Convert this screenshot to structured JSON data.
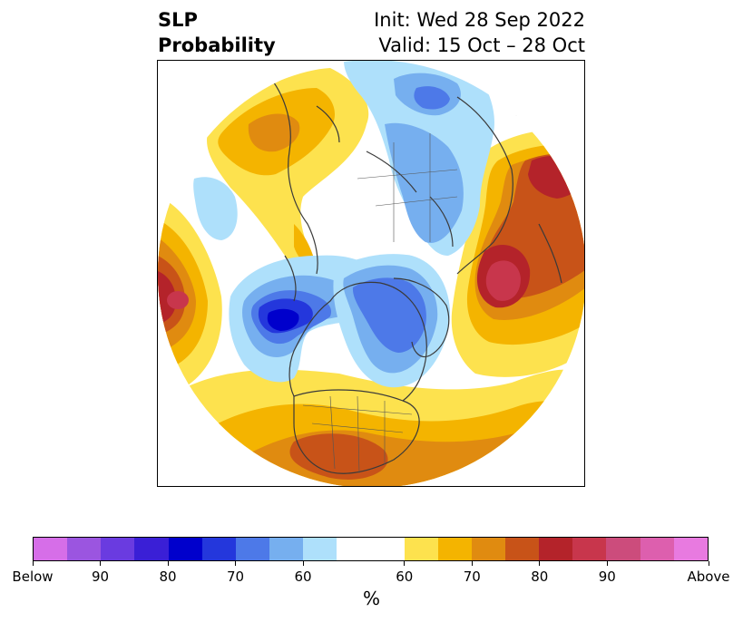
{
  "title": {
    "left_line1": "SLP",
    "left_line2": "Probability",
    "right_line1": "Init: Wed 28 Sep 2022",
    "right_line2": "Valid: 15 Oct – 28 Oct"
  },
  "map": {
    "projection": "north-polar-stereographic",
    "coastline_color": "#3a3a3a",
    "regions": [
      {
        "name": "below-center-north-pacific",
        "category": "below",
        "max_percent": 80
      },
      {
        "name": "below-arctic-canada-greenland",
        "category": "below",
        "max_percent": 70
      },
      {
        "name": "below-siberia",
        "category": "below",
        "max_percent": 60
      },
      {
        "name": "above-west-atlantic-europe",
        "category": "above",
        "max_percent": 80
      },
      {
        "name": "above-north-atlantic-europe",
        "category": "above",
        "max_percent": 80
      },
      {
        "name": "above-east-pacific",
        "category": "above",
        "max_percent": 80
      },
      {
        "name": "above-united-states",
        "category": "above",
        "max_percent": 70
      },
      {
        "name": "above-central-asia",
        "category": "above",
        "max_percent": 70
      }
    ]
  },
  "colorbar": {
    "unit": "%",
    "colors": [
      "#d66ee8",
      "#9b55e0",
      "#6a3be0",
      "#3a1fd6",
      "#0000cc",
      "#2437dc",
      "#4d79e8",
      "#76afef",
      "#aee0fb",
      "#ffffff",
      "#ffffff",
      "#fde24e",
      "#f4b400",
      "#e08b10",
      "#c85318",
      "#b4232a",
      "#c8364c",
      "#cc4c7c",
      "#dd5fae",
      "#e87ae0"
    ],
    "tick_labels": [
      "Below",
      "90",
      "80",
      "70",
      "60",
      "60",
      "70",
      "80",
      "90",
      "Above"
    ]
  }
}
